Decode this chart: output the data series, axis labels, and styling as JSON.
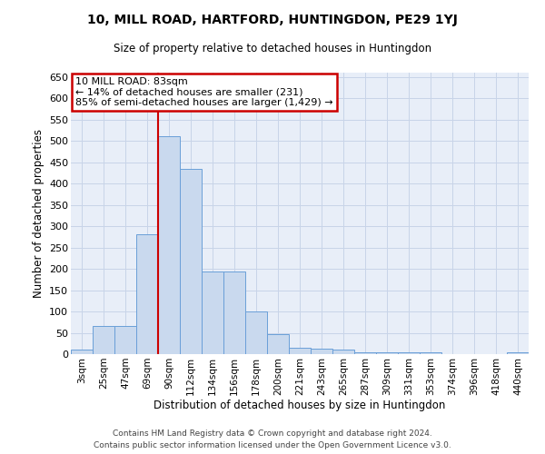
{
  "title_line1": "10, MILL ROAD, HARTFORD, HUNTINGDON, PE29 1YJ",
  "title_line2": "Size of property relative to detached houses in Huntingdon",
  "xlabel": "Distribution of detached houses by size in Huntingdon",
  "ylabel": "Number of detached properties",
  "footer_line1": "Contains HM Land Registry data © Crown copyright and database right 2024.",
  "footer_line2": "Contains public sector information licensed under the Open Government Licence v3.0.",
  "bar_color": "#c9d9ee",
  "bar_edge_color": "#6a9fd8",
  "grid_color": "#c8d4e8",
  "background_color": "#e8eef8",
  "annotation_box_color": "#cc0000",
  "vline_color": "#cc0000",
  "categories": [
    "3sqm",
    "25sqm",
    "47sqm",
    "69sqm",
    "90sqm",
    "112sqm",
    "134sqm",
    "156sqm",
    "178sqm",
    "200sqm",
    "221sqm",
    "243sqm",
    "265sqm",
    "287sqm",
    "309sqm",
    "331sqm",
    "353sqm",
    "374sqm",
    "396sqm",
    "418sqm",
    "440sqm"
  ],
  "values": [
    10,
    65,
    65,
    280,
    510,
    435,
    193,
    193,
    100,
    47,
    15,
    12,
    10,
    5,
    5,
    5,
    5,
    0,
    0,
    0,
    5
  ],
  "ylim": [
    0,
    660
  ],
  "yticks": [
    0,
    50,
    100,
    150,
    200,
    250,
    300,
    350,
    400,
    450,
    500,
    550,
    600,
    650
  ],
  "vline_x_index": 4,
  "annotation_line1": "10 MILL ROAD: 83sqm",
  "annotation_line2": "← 14% of detached houses are smaller (231)",
  "annotation_line3": "85% of semi-detached houses are larger (1,429) →"
}
